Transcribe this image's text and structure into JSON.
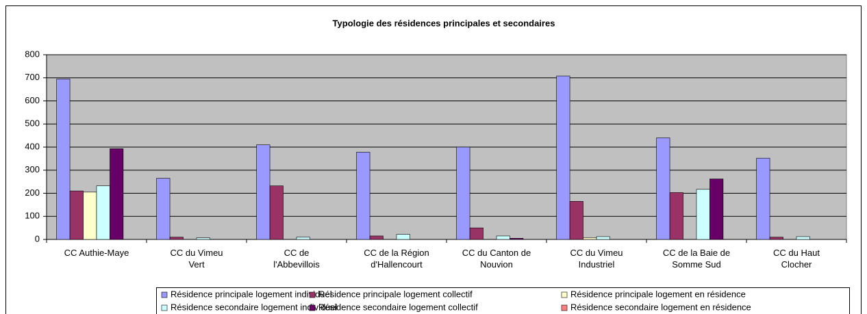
{
  "chart_data": {
    "type": "bar",
    "title": "Typologie des résidences principales et secondaires",
    "categories": [
      "CC Authie-Maye",
      "CC du Vimeu\nVert",
      "CC de\nl'Abbevillois",
      "CC de la Région\nd'Hallencourt",
      "CC du Canton de\nNouvion",
      "CC du Vimeu\nIndustriel",
      "CC de la Baie de\nSomme Sud",
      "CC du Haut\nClocher"
    ],
    "series": [
      {
        "name": "Résidence principale logement individuel",
        "color": "#9999ff",
        "values": [
          695,
          265,
          410,
          378,
          400,
          708,
          440,
          352
        ]
      },
      {
        "name": "Résidence principale logement collectif",
        "color": "#993366",
        "values": [
          210,
          10,
          232,
          15,
          50,
          165,
          203,
          10
        ]
      },
      {
        "name": "Résidence principale logement en résidence",
        "color": "#ffffcc",
        "values": [
          205,
          0,
          0,
          0,
          0,
          8,
          0,
          0
        ]
      },
      {
        "name": "Résidence secondaire logement individuel",
        "color": "#ccffff",
        "values": [
          232,
          7,
          10,
          22,
          15,
          12,
          217,
          12
        ]
      },
      {
        "name": "Résidence secondaire logement collectif",
        "color": "#660066",
        "values": [
          393,
          0,
          0,
          0,
          5,
          0,
          262,
          0
        ]
      },
      {
        "name": "Résidence secondaire logement en résidence",
        "color": "#ff8080",
        "values": [
          0,
          0,
          0,
          0,
          0,
          0,
          0,
          0
        ]
      }
    ],
    "ylim": [
      0,
      800
    ],
    "yticks": [
      0,
      100,
      200,
      300,
      400,
      500,
      600,
      700,
      800
    ],
    "grid": true,
    "legend": "bottom"
  }
}
